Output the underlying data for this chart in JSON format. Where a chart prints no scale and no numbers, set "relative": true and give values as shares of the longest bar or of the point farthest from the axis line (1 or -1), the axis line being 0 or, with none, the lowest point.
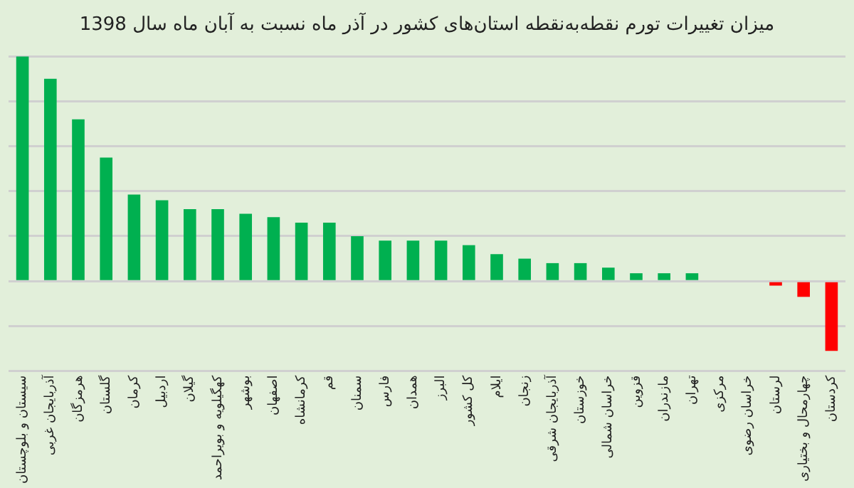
{
  "chart_data": {
    "type": "bar",
    "title": "میزان تغییرات تورم نقطه‌به‌نقطه استان‌های کشور در آذر ماه نسبت به آبان ماه سال 1398",
    "categories": [
      "سیستان و بلوچستان",
      "آذربایجان غربی",
      "هرمزگان",
      "گلستان",
      "کرمان",
      "اردبیل",
      "گیلان",
      "کهگیلویه و بویراحمد",
      "بوشهر",
      "اصفهان",
      "کرمانشاه",
      "قم",
      "سمنان",
      "فارس",
      "همدان",
      "البرز",
      "کل کشور",
      "ایلام",
      "زنجان",
      "آذربایجان شرقی",
      "خوزستان",
      "خراسان شمالی",
      "قزوین",
      "مازندران",
      "تهران",
      "مرکزی",
      "خراسان رضوی",
      "لرستان",
      "چهارمحال و بختیاری",
      "کردستان"
    ],
    "values": [
      1,
      0.9,
      0.72,
      0.55,
      0.385,
      0.36,
      0.32,
      0.32,
      0.3,
      0.285,
      0.26,
      0.26,
      0.2,
      0.18,
      0.18,
      0.18,
      0.16,
      0.12,
      0.1,
      0.08,
      0.08,
      0.06,
      0.035,
      0.035,
      0.035,
      0,
      0,
      -0.02,
      -0.07,
      -0.31
    ],
    "colors": [
      "#00b050",
      "#00b050",
      "#00b050",
      "#00b050",
      "#00b050",
      "#00b050",
      "#00b050",
      "#00b050",
      "#00b050",
      "#00b050",
      "#00b050",
      "#00b050",
      "#00b050",
      "#00b050",
      "#00b050",
      "#00b050",
      "#00b050",
      "#00b050",
      "#00b050",
      "#00b050",
      "#00b050",
      "#00b050",
      "#00b050",
      "#00b050",
      "#00b050",
      "#00b050",
      "#00b050",
      "#ff0000",
      "#ff0000",
      "#ff0000"
    ],
    "relative": true,
    "grid": "y",
    "legend": false
  }
}
